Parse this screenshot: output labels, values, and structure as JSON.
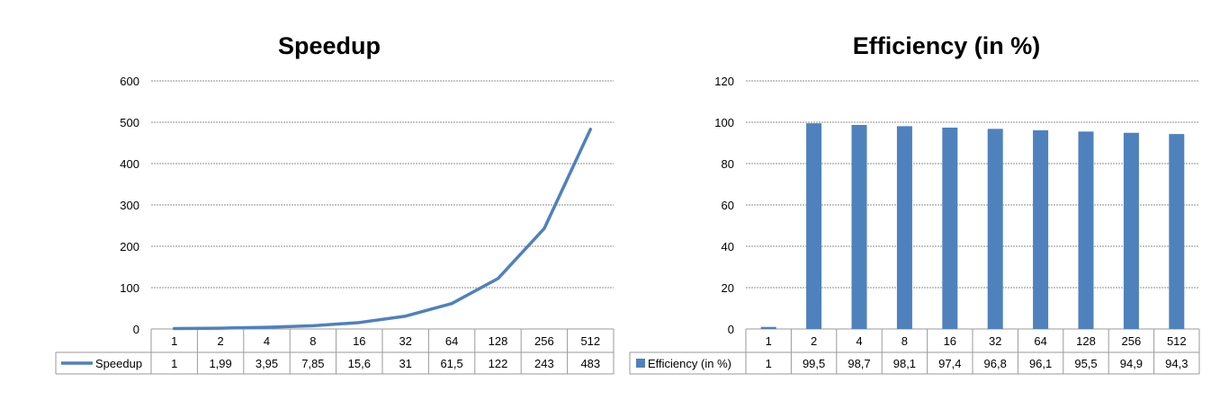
{
  "chart_data": [
    {
      "type": "line",
      "title": "Speedup",
      "categories": [
        "1",
        "2",
        "4",
        "8",
        "16",
        "32",
        "64",
        "128",
        "256",
        "512"
      ],
      "series": [
        {
          "name": "Speedup",
          "values": [
            1,
            1.99,
            3.95,
            7.85,
            15.6,
            31,
            61.5,
            122,
            243,
            483
          ],
          "labels": [
            "1",
            "1,99",
            "3,95",
            "7,85",
            "15,6",
            "31",
            "61,5",
            "122",
            "243",
            "483"
          ]
        }
      ],
      "ylim": [
        0,
        600
      ],
      "yticks": [
        "0",
        "100",
        "200",
        "300",
        "400",
        "500",
        "600"
      ],
      "grid": true,
      "data_table": true,
      "colors": {
        "series": "#4F81BD",
        "grid": "#8c8c8c"
      }
    },
    {
      "type": "bar",
      "title": "Efficiency (in %)",
      "categories": [
        "1",
        "2",
        "4",
        "8",
        "16",
        "32",
        "64",
        "128",
        "256",
        "512"
      ],
      "series": [
        {
          "name": "Efficiency (in %)",
          "values": [
            1,
            99.5,
            98.7,
            98.1,
            97.4,
            96.8,
            96.1,
            95.5,
            94.9,
            94.3
          ],
          "labels": [
            "1",
            "99,5",
            "98,7",
            "98,1",
            "97,4",
            "96,8",
            "96,1",
            "95,5",
            "94,9",
            "94,3"
          ]
        }
      ],
      "ylim": [
        0,
        120
      ],
      "yticks": [
        "0",
        "20",
        "40",
        "60",
        "80",
        "100",
        "120"
      ],
      "grid": true,
      "data_table": true,
      "colors": {
        "series": "#4F81BD",
        "grid": "#8c8c8c"
      }
    }
  ]
}
